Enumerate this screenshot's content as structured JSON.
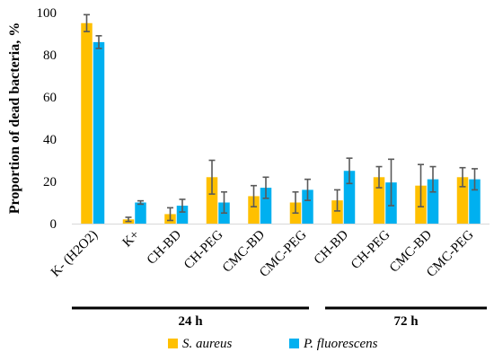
{
  "chart_data": {
    "type": "bar",
    "title": "",
    "xlabel": "",
    "ylabel": "Proportion of dead bacteria, %",
    "ylim": [
      0,
      100
    ],
    "yticks": [
      0,
      20,
      40,
      60,
      80,
      100
    ],
    "grid": false,
    "legend_position": "bottom",
    "categories": [
      "K- (H2O2)",
      "K+",
      "CH-BD",
      "CH-PEG",
      "CMC-BD",
      "CMC-PEG",
      "CH-BD",
      "CH-PEG",
      "CMC-BD",
      "CMC-PEG"
    ],
    "series": [
      {
        "name": "S. aureus",
        "color": "#FFC000",
        "values": [
          95,
          2,
          4.5,
          22,
          13,
          10,
          11,
          22,
          18,
          22
        ],
        "errors": [
          4,
          1,
          3,
          8,
          5,
          5,
          5,
          5,
          10,
          4.5
        ]
      },
      {
        "name": "P. fluorescens",
        "color": "#00B0F0",
        "values": [
          86,
          10,
          8.5,
          10,
          17,
          16,
          25,
          19.5,
          21,
          21
        ],
        "errors": [
          3,
          0.8,
          3,
          5,
          5,
          5,
          6,
          11,
          6,
          5
        ]
      }
    ],
    "groups": [
      {
        "label": "24 h",
        "start": 0,
        "end": 5
      },
      {
        "label": "72 h",
        "start": 6,
        "end": 9
      }
    ]
  }
}
